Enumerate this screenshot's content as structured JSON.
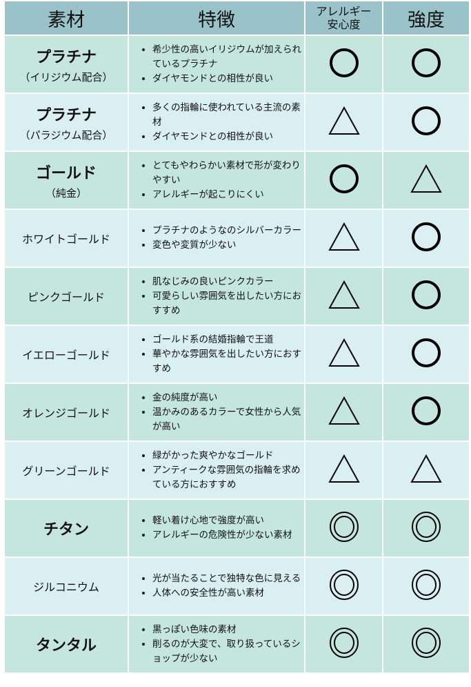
{
  "headers": [
    "素材",
    "特徴",
    "アレルギー安心度",
    "強度"
  ],
  "header_allergy_lines": [
    "アレルギー",
    "安心度"
  ],
  "symbols_legend": {
    "double_circle": "◎",
    "circle": "○",
    "triangle": "△"
  },
  "rows": [
    {
      "name": "プラチナ",
      "sub": "（イリジウム配合）",
      "big": true,
      "features": [
        "希少性の高いイリジウムが加えられているプラチナ",
        "ダイヤモンドとの相性が良い"
      ],
      "allergy": "circle",
      "strength": "circle"
    },
    {
      "name": "プラチナ",
      "sub": "（パラジウム配合）",
      "big": true,
      "features": [
        "多くの指輪に使われている主流の素材",
        "ダイヤモンドとの相性が良い"
      ],
      "allergy": "triangle",
      "strength": "circle"
    },
    {
      "name": "ゴールド",
      "sub": "（純金）",
      "big": true,
      "features": [
        "とてもやわらかい素材で形が変わりやすい",
        "アレルギーが起こりにくい"
      ],
      "allergy": "circle",
      "strength": "triangle"
    },
    {
      "name": "ホワイトゴールド",
      "sub": "",
      "big": false,
      "features": [
        "プラチナのようなのシルバーカラー",
        "変色や変質が少ない"
      ],
      "allergy": "triangle",
      "strength": "circle"
    },
    {
      "name": "ピンクゴールド",
      "sub": "",
      "big": false,
      "features": [
        "肌なじみの良いピンクカラー",
        "可愛らしい雰囲気を出したい方におすすめ"
      ],
      "allergy": "triangle",
      "strength": "circle"
    },
    {
      "name": "イエローゴールド",
      "sub": "",
      "big": false,
      "features": [
        "ゴールド系の結婚指輪で王道",
        "華やかな雰囲気を出したい方におすすめ"
      ],
      "allergy": "triangle",
      "strength": "circle"
    },
    {
      "name": "オレンジゴールド",
      "sub": "",
      "big": false,
      "features": [
        "金の純度が高い",
        "温かみのあるカラーで女性から人気が高い"
      ],
      "allergy": "triangle",
      "strength": "circle"
    },
    {
      "name": "グリーンゴールド",
      "sub": "",
      "big": false,
      "features": [
        "緑がかった爽やかなゴールド",
        "アンティークな雰囲気の指輪を求めている方におすすめ"
      ],
      "allergy": "triangle",
      "strength": "triangle"
    },
    {
      "name": "チタン",
      "sub": "",
      "big": true,
      "features": [
        "軽い着け心地で強度が高い",
        "アレルギーの危険性が少ない素材"
      ],
      "allergy": "double_circle",
      "strength": "double_circle"
    },
    {
      "name": "ジルコニウム",
      "sub": "",
      "big": false,
      "features": [
        "光が当たることで独特な色に見える",
        "人体への安全性が高い素材"
      ],
      "allergy": "double_circle",
      "strength": "double_circle"
    },
    {
      "name": "タンタル",
      "sub": "",
      "big": true,
      "features": [
        "黒っぽい色味の素材",
        "削るのが大変で、取り扱っているショップが少ない"
      ],
      "allergy": "double_circle",
      "strength": "double_circle"
    }
  ],
  "colors": {
    "header": "#99c3c9",
    "row_green": "#c5e6dd",
    "row_blue": "#d9eff1"
  }
}
